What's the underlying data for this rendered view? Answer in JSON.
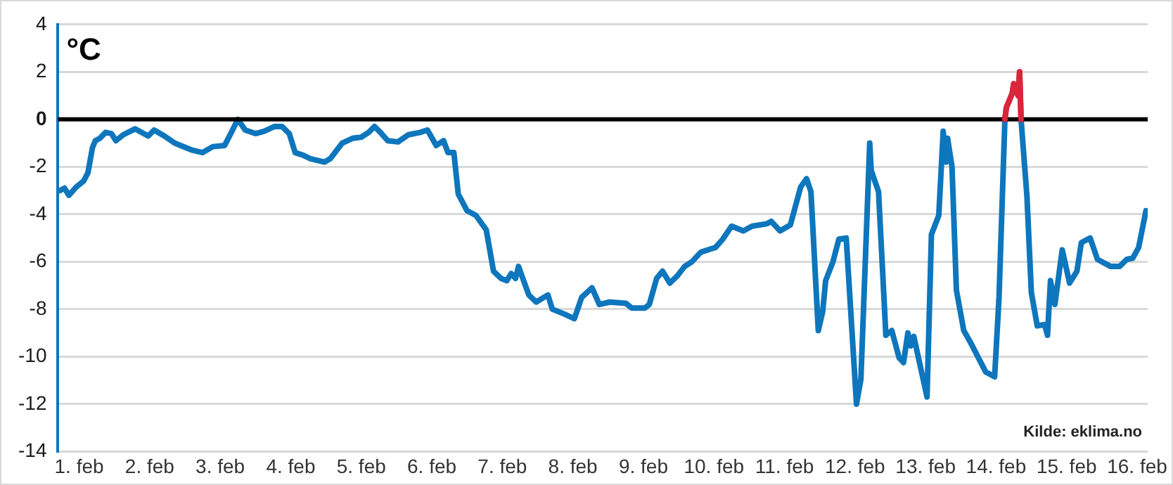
{
  "chart_data": {
    "type": "line",
    "ylabel": "°C",
    "annotations": [
      "Kilde: eklima.no"
    ],
    "xlim": [
      "--01-31T16:48",
      "--02-16T03:36"
    ],
    "xticks": [
      {
        "value": "--02-01",
        "label": "1. feb"
      },
      {
        "value": "--02-02",
        "label": "2. feb"
      },
      {
        "value": "--02-03",
        "label": "3. feb"
      },
      {
        "value": "--02-04",
        "label": "4. feb"
      },
      {
        "value": "--02-05",
        "label": "5. feb"
      },
      {
        "value": "--02-06",
        "label": "6. feb"
      },
      {
        "value": "--02-07",
        "label": "7. feb"
      },
      {
        "value": "--02-08",
        "label": "8. feb"
      },
      {
        "value": "--02-09",
        "label": "9. feb"
      },
      {
        "value": "--02-10",
        "label": "10. feb"
      },
      {
        "value": "--02-11",
        "label": "11. feb"
      },
      {
        "value": "--02-12",
        "label": "12. feb"
      },
      {
        "value": "--02-13",
        "label": "13. feb"
      },
      {
        "value": "--02-14",
        "label": "14. feb"
      },
      {
        "value": "--02-15",
        "label": "15. feb"
      },
      {
        "value": "--02-16",
        "label": "16. feb"
      }
    ],
    "ylim": [
      -14,
      4
    ],
    "yticks": [
      -14,
      -12,
      -10,
      -8,
      -6,
      -4,
      -2,
      0,
      2,
      4
    ],
    "grid": "y",
    "legend": false,
    "marker": "none",
    "line_style": "solid",
    "ref_lines": [
      {
        "axis": "y",
        "value": 0,
        "color": "#000000"
      }
    ],
    "series": [
      {
        "color": "#0e76bc",
        "x": [
          "--01-31T17:30",
          "--01-31T19:00",
          "--01-31T20:30",
          "--01-31T23:00",
          "--02-01T01:30",
          "--02-01T03:00",
          "--02-01T04:30",
          "--02-01T05:30",
          "--02-01T07:00",
          "--02-01T09:00",
          "--02-01T11:00",
          "--02-01T12:30",
          "--02-01T15:00",
          "--02-01T19:00",
          "--02-01T23:30",
          "--02-02T01:30",
          "--02-02T05:00",
          "--02-02T08:30",
          "--02-02T14:30",
          "--02-02T18:00",
          "--02-02T21:30",
          "--02-03T01:30",
          "--02-03T04:00",
          "--02-03T06:00",
          "--02-03T08:30",
          "--02-03T12:00",
          "--02-03T15:00",
          "--02-03T18:30",
          "--02-03T21:00",
          "--02-03T23:30",
          "--02-04T01:30",
          "--02-04T04:00",
          "--02-04T06:30",
          "--02-04T11:30",
          "--02-04T13:30",
          "--02-04T17:30",
          "--02-04T21:00",
          "--02-05T00:00",
          "--02-05T02:30",
          "--02-05T04:30",
          "--02-05T06:30",
          "--02-05T09:00",
          "--02-05T12:30",
          "--02-05T16:00",
          "--02-05T20:00",
          "--02-05T22:30",
          "--02-06T01:30",
          "--02-06T04:00",
          "--02-06T05:30",
          "--02-06T07:30",
          "--02-06T09:00",
          "--02-06T12:00",
          "--02-06T15:00",
          "--02-06T18:30",
          "--02-06T21:00",
          "--02-06T23:30",
          "--02-07T01:30",
          "--02-07T03:00",
          "--02-07T04:30",
          "--02-07T05:30",
          "--02-07T09:00",
          "--02-07T11:30",
          "--02-07T13:30",
          "--02-07T15:30",
          "--02-07T17:00",
          "--02-07T21:00",
          "--02-08T00:30",
          "--02-08T03:00",
          "--02-08T06:30",
          "--02-08T09:00",
          "--02-08T12:30",
          "--02-08T18:00",
          "--02-08T20:00",
          "--02-09T00:30",
          "--02-09T02:00",
          "--02-09T04:30",
          "--02-09T06:30",
          "--02-09T09:00",
          "--02-09T11:30",
          "--02-09T14:00",
          "--02-09T16:30",
          "--02-09T19:30",
          "--02-10T00:30",
          "--02-10T03:00",
          "--02-10T06:00",
          "--02-10T10:00",
          "--02-10T13:00",
          "--02-10T18:00",
          "--02-10T19:30",
          "--02-10T22:30",
          "--02-11T02:00",
          "--02-11T05:30",
          "--02-11T07:30",
          "--02-11T09:00",
          "--02-11T11:30",
          "--02-11T13:00",
          "--02-11T14:00",
          "--02-11T16:30",
          "--02-11T18:30",
          "--02-11T21:00",
          "--02-12T00:30",
          "--02-12T02:00",
          "--02-12T05:00",
          "--02-12T05:30",
          "--02-12T08:00",
          "--02-12T10:30",
          "--02-12T12:30",
          "--02-12T15:00",
          "--02-12T16:30",
          "--02-12T18:00",
          "--02-12T19:00",
          "--02-12T20:00",
          "--02-13T00:30",
          "--02-13T02:00",
          "--02-13T04:30",
          "--02-13T06:00",
          "--02-13T07:00",
          "--02-13T07:30",
          "--02-13T09:00",
          "--02-13T10:30",
          "--02-13T13:00",
          "--02-13T15:30",
          "--02-13T18:00",
          "--02-13T20:30",
          "--02-13T23:30",
          "--02-14T01:00",
          "--02-14T03:00",
          "--02-14T05:30",
          "--02-14T08:30",
          "--02-14T10:30",
          "--02-14T12:00",
          "--02-14T14:00",
          "--02-14T16:30",
          "--02-14T17:30",
          "--02-14T18:30",
          "--02-14T20:00",
          "--02-14T22:30",
          "--02-15T01:00",
          "--02-15T03:30",
          "--02-15T05:00",
          "--02-15T08:00",
          "--02-15T10:30",
          "--02-15T15:00",
          "--02-15T18:00",
          "--02-15T20:30",
          "--02-15T22:30",
          "--02-16T00:30",
          "--02-16T03:00"
        ],
        "values": [
          -3.0,
          -2.9,
          -3.2,
          -2.85,
          -2.6,
          -2.25,
          -1.2,
          -0.9,
          -0.8,
          -0.55,
          -0.6,
          -0.9,
          -0.65,
          -0.4,
          -0.7,
          -0.45,
          -0.7,
          -1.0,
          -1.3,
          -1.4,
          -1.15,
          -1.1,
          -0.5,
          0,
          -0.45,
          -0.6,
          -0.5,
          -0.3,
          -0.3,
          -0.6,
          -1.4,
          -1.5,
          -1.65,
          -1.8,
          -1.65,
          -1.0,
          -0.8,
          -0.75,
          -0.55,
          -0.3,
          -0.55,
          -0.9,
          -0.95,
          -0.65,
          -0.55,
          -0.45,
          -1.1,
          -0.9,
          -1.4,
          -1.4,
          -3.15,
          -3.85,
          -4.05,
          -4.65,
          -6.4,
          -6.7,
          -6.8,
          -6.5,
          -6.7,
          -6.2,
          -7.4,
          -7.7,
          -7.55,
          -7.4,
          -8.0,
          -8.2,
          -8.4,
          -7.5,
          -7.1,
          -7.8,
          -7.7,
          -7.75,
          -7.95,
          -7.95,
          -7.8,
          -6.7,
          -6.4,
          -6.9,
          -6.6,
          -6.2,
          -6.0,
          -5.6,
          -5.4,
          -5.05,
          -4.5,
          -4.7,
          -4.5,
          -4.4,
          -4.3,
          -4.7,
          -4.45,
          -2.85,
          -2.5,
          -3.05,
          -8.9,
          -8.1,
          -6.8,
          -6.0,
          -5.05,
          -5.0,
          -12.0,
          -10.95,
          -1.0,
          -2.15,
          -3.05,
          -9.1,
          -8.9,
          -10.05,
          -10.25,
          -9.0,
          -9.55,
          -9.15,
          -11.7,
          -4.85,
          -4.05,
          -0.5,
          -1.8,
          -0.8,
          -2.0,
          -7.2,
          -8.9,
          -9.45,
          -10.05,
          -10.65,
          -10.85,
          -7.5,
          0,
          null,
          0,
          -3.25,
          -7.3,
          -8.7,
          -8.65,
          -9.1,
          -6.8,
          -7.8,
          -5.5,
          -6.9,
          -6.4,
          -5.2,
          -5.0,
          -5.9,
          -6.2,
          -6.2,
          -5.9,
          -5.85,
          -5.4,
          -3.85
        ]
      },
      {
        "color": "#d9263a",
        "x": [
          "--02-14T03:00",
          "--02-14T03:30",
          "--02-14T05:30",
          "--02-14T06:00",
          "--02-14T07:30",
          "--02-14T08:00",
          "--02-14T08:30"
        ],
        "values": [
          0,
          0.5,
          1.1,
          1.5,
          1.0,
          2.0,
          0
        ]
      }
    ]
  }
}
